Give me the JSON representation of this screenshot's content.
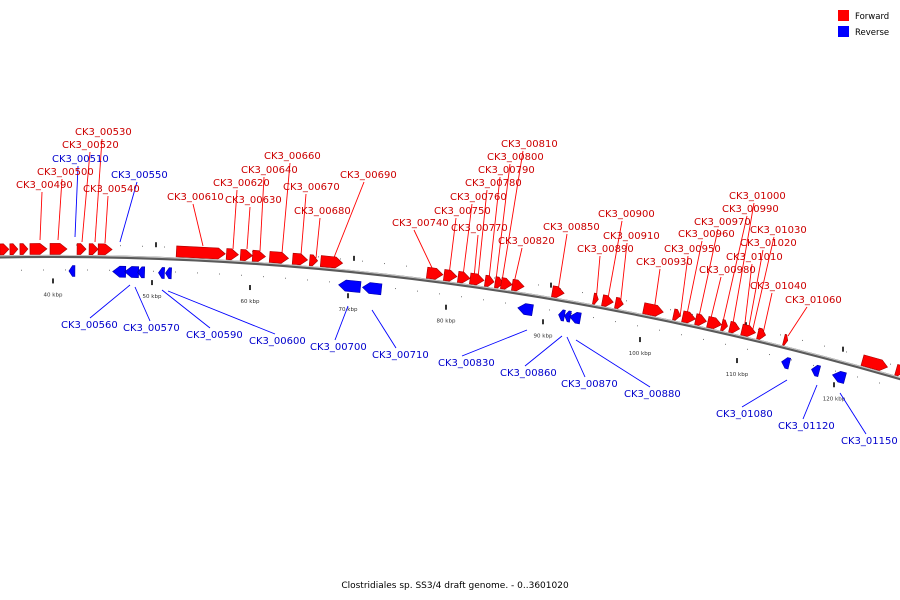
{
  "caption": "Clostridiales sp. SS3/4 draft genome. - 0..3601020",
  "legend": [
    {
      "label": "Forward",
      "color": "#ff0000"
    },
    {
      "label": "Reverse",
      "color": "#0000ff"
    }
  ],
  "colors": {
    "forward": "#ff0000",
    "reverse": "#0000ff",
    "forward_label": "#cc0000",
    "reverse_label": "#0000cc",
    "backbone": "#888888"
  },
  "scale_ticks": [
    "40 kbp",
    "50 kbp",
    "60 kbp",
    "70 kbp",
    "80 kbp",
    "90 kbp",
    "100 kbp",
    "110 kbp",
    "120 kbp"
  ],
  "genes_forward": [
    "CK3_00490",
    "CK3_00500",
    "CK3_00520",
    "CK3_00530",
    "CK3_00540",
    "CK3_00610",
    "CK3_00620",
    "CK3_00630",
    "CK3_00640",
    "CK3_00660",
    "CK3_00670",
    "CK3_00680",
    "CK3_00690",
    "CK3_00740",
    "CK3_00750",
    "CK3_00760",
    "CK3_00770",
    "CK3_00780",
    "CK3_00790",
    "CK3_00800",
    "CK3_00810",
    "CK3_00820",
    "CK3_00850",
    "CK3_00890",
    "CK3_00900",
    "CK3_00910",
    "CK3_00930",
    "CK3_00950",
    "CK3_00960",
    "CK3_00970",
    "CK3_00980",
    "CK3_00990",
    "CK3_01000",
    "CK3_01010",
    "CK3_01020",
    "CK3_01030",
    "CK3_01040",
    "CK3_01060"
  ],
  "genes_reverse": [
    "CK3_00510",
    "CK3_00550",
    "CK3_00560",
    "CK3_00570",
    "CK3_00590",
    "CK3_00600",
    "CK3_00700",
    "CK3_00710",
    "CK3_00830",
    "CK3_00860",
    "CK3_00870",
    "CK3_00880",
    "CK3_01080",
    "CK3_01120",
    "CK3_01150"
  ]
}
